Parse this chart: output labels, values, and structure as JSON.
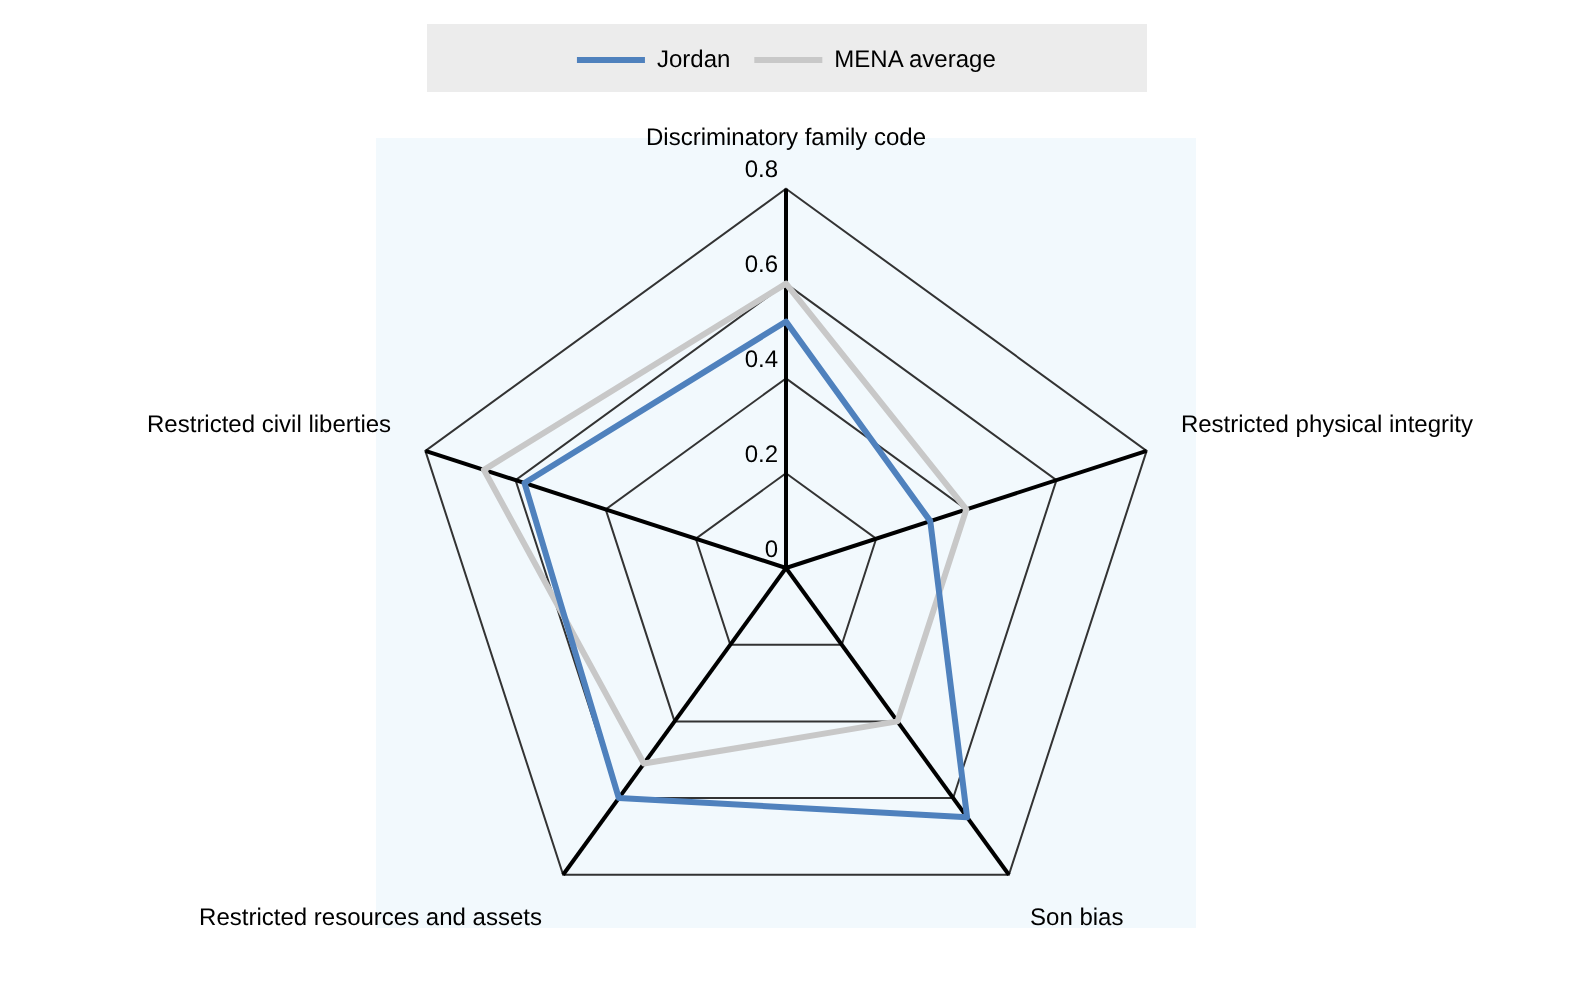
{
  "chart_data": {
    "type": "radar",
    "categories": [
      "Discriminatory family code",
      "Restricted physical integrity",
      "Son bias",
      "Restricted resources and assets",
      "Restricted civil liberties"
    ],
    "series": [
      {
        "name": "Jordan",
        "color": "#4f81bd",
        "values": [
          0.52,
          0.32,
          0.65,
          0.6,
          0.58
        ]
      },
      {
        "name": "MENA average",
        "color": "#c8c8c8",
        "values": [
          0.6,
          0.4,
          0.4,
          0.51,
          0.67
        ]
      }
    ],
    "ylim": [
      0,
      0.8
    ],
    "yticks": [
      0,
      0.2,
      0.4,
      0.6,
      0.8
    ],
    "grid": true,
    "legend": "top",
    "marker": "none",
    "line_style": "solid"
  }
}
